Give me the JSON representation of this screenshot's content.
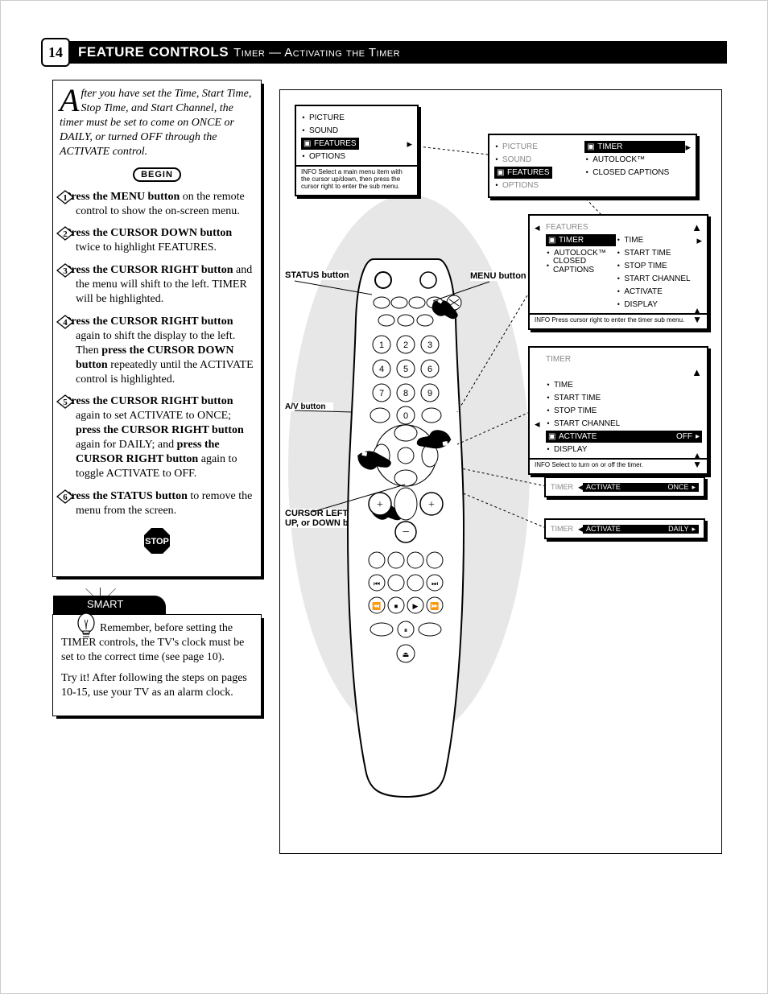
{
  "page_number": "14",
  "title_bold": "FEATURE CONTROLS",
  "title_rest": "Timer — Activating the Timer",
  "intro": "fter you have set the Time, Start Time, Stop Time, and Start Channel, the timer must be set to come on ONCE or DAILY, or turned OFF through the ACTIVATE control.",
  "dropcap": "A",
  "begin_label": "BEGIN",
  "stop_label": "STOP",
  "steps": [
    {
      "n": "1",
      "html": "<b>Press the MENU button</b> on the remote control to show the on-screen menu."
    },
    {
      "n": "2",
      "html": "<b>Press the CURSOR DOWN button</b> twice to highlight FEATURES."
    },
    {
      "n": "3",
      "html": "<b>Press the CURSOR RIGHT button</b> and the menu will shift to the left. TIMER will be highlighted."
    },
    {
      "n": "4",
      "html": "<b>Press the CURSOR RIGHT button</b> again to shift the display to the left. Then <b>press the CURSOR DOWN button</b> repeatedly until the ACTIVATE control is highlighted."
    },
    {
      "n": "5",
      "html": "<b>Press the CURSOR RIGHT button</b> again to set ACTIVATE to ONCE; <b>press the CURSOR RIGHT button</b> again for DAILY; and <b>press the CURSOR RIGHT button</b> again to toggle ACTIVATE to OFF."
    },
    {
      "n": "6",
      "html": "<b>Press the STATUS button</b> to remove the menu from the screen."
    }
  ],
  "tip_header": "MART",
  "tip_p1": "Remember, before setting the TIMER controls, the TV's clock must be set to the correct time (see page 10).",
  "tip_p2": "Try it! After following the steps on pages 10-15, use your TV as an alarm clock.",
  "menu1": {
    "items": [
      "PICTURE",
      "SOUND",
      "FEATURES",
      "OPTIONS"
    ],
    "hl_index": 2,
    "info": "INFO Select a main menu item with the cursor up/down, then press the cursor right to enter the sub menu."
  },
  "menu2": {
    "left_prefix": [
      "PICTURE",
      "SOUND"
    ],
    "left_hl": "FEATURES",
    "left_suffix": [
      "OPTIONS"
    ],
    "right": [
      "TIMER",
      "AUTOLOCK™",
      "CLOSED CAPTIONS"
    ],
    "right_hl_index": 0
  },
  "menu3": {
    "prefix": [
      "FEATURES"
    ],
    "col_left": [
      "TIMER",
      "AUTOLOCK™",
      "CLOSED CAPTIONS"
    ],
    "col_left_hl_index": 0,
    "col_right": [
      "TIME",
      "START TIME",
      "STOP TIME",
      "START CHANNEL",
      "ACTIVATE",
      "DISPLAY"
    ],
    "info": "INFO Press cursor right to enter the timer sub menu."
  },
  "menu4": {
    "prefix": [
      "TIMER"
    ],
    "items": [
      "TIME",
      "START TIME",
      "STOP TIME",
      "START CHANNEL",
      "ACTIVATE",
      "DISPLAY"
    ],
    "hl_index": 4,
    "hl_value": "OFF",
    "info": "INFO Select to turn on or off the timer."
  },
  "slim1": {
    "label": "ACTIVATE",
    "value": "ONCE"
  },
  "slim2": {
    "label": "ACTIVATE",
    "value": "DAILY"
  },
  "callouts": {
    "status": "STATUS button",
    "menu": "MENU button",
    "cursor": "CURSOR LEFT, RIGHT, UP, or DOWN buttons"
  },
  "colors": {
    "shadow": "#bfbfbf"
  }
}
